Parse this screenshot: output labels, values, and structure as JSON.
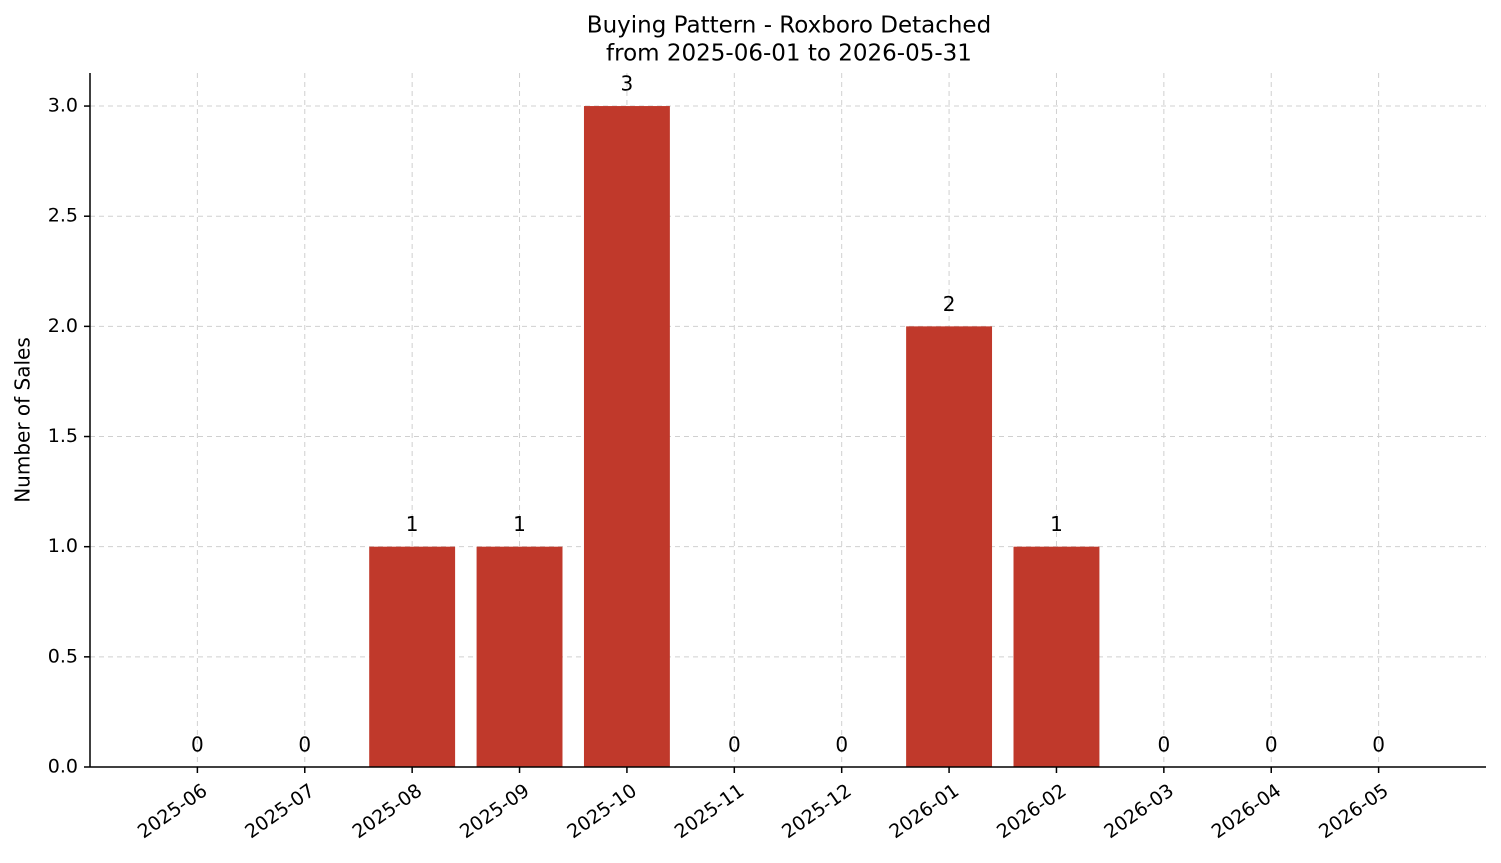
{
  "chart_data": {
    "type": "bar",
    "title": "Buying Pattern - Roxboro Detached",
    "subtitle": "from 2025-06-01 to 2026-05-31",
    "ylabel": "Number of Sales",
    "categories": [
      "2025-06",
      "2025-07",
      "2025-08",
      "2025-09",
      "2025-10",
      "2025-11",
      "2025-12",
      "2026-01",
      "2026-02",
      "2026-03",
      "2026-04",
      "2026-05"
    ],
    "values": [
      0,
      0,
      1,
      1,
      3,
      0,
      0,
      2,
      1,
      0,
      0,
      0
    ],
    "color": "#c0392b",
    "ylim": [
      0,
      3.15
    ],
    "yticks": [
      {
        "value": 0,
        "label": "0.0"
      },
      0.5,
      {
        "value": 1,
        "label": "1.0"
      },
      1.5,
      {
        "value": 2,
        "label": "2.0"
      },
      2.5,
      {
        "value": 3,
        "label": "3.0"
      }
    ],
    "grid": true
  }
}
